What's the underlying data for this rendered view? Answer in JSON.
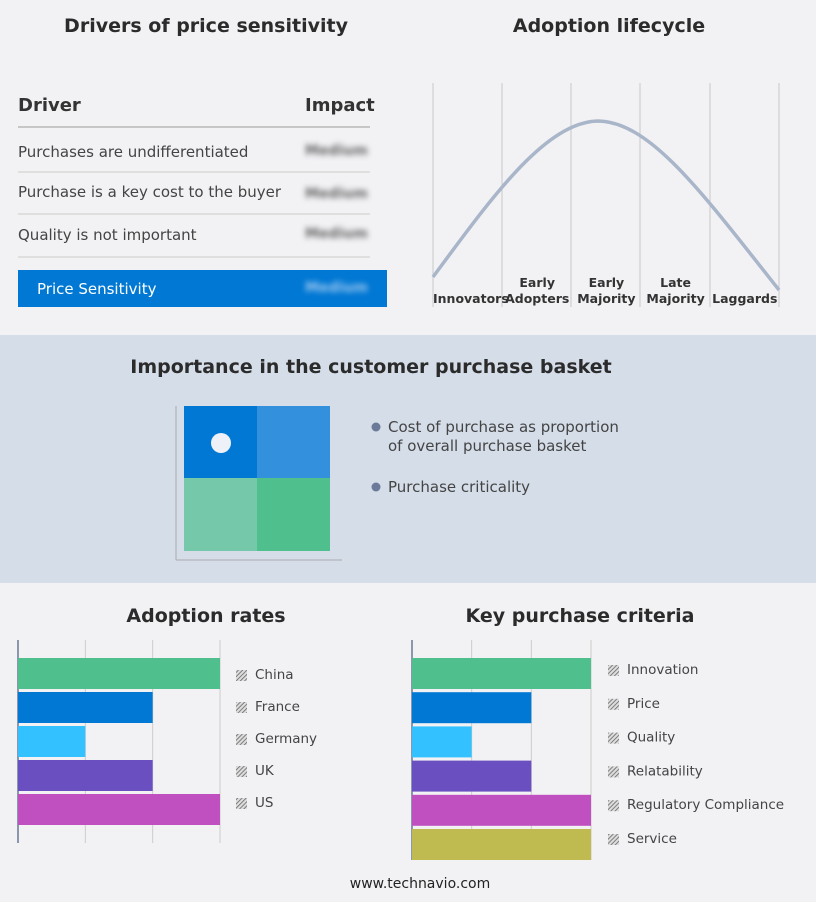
{
  "drivers": {
    "title": "Drivers of price sensitivity",
    "header": [
      "Driver",
      "Impact"
    ],
    "rows": [
      [
        "Purchases are undifferentiated",
        "Medium"
      ],
      [
        "Purchase is a key cost to the buyer",
        "Medium"
      ],
      [
        "Quality is not important",
        "Medium"
      ]
    ],
    "summary": [
      "Price Sensitivity",
      "Medium"
    ]
  },
  "lifecycle": {
    "title": "Adoption lifecycle",
    "stages": [
      "Innovators",
      "Early Adopters",
      "Early Majority",
      "Late Majority",
      "Laggards"
    ]
  },
  "basket": {
    "title": "Importance in the customer purchase basket",
    "legend": [
      "Cost of purchase as proportion of overall purchase basket",
      "Purchase criticality"
    ]
  },
  "chart_data": [
    {
      "type": "bar",
      "title": "Adoption rates",
      "categories": [
        "China",
        "France",
        "Germany",
        "UK",
        "US"
      ],
      "values": [
        3,
        2,
        1,
        2,
        3
      ],
      "colors": [
        "#4fc08d",
        "#0078d4",
        "#33c2ff",
        "#6a4fc0",
        "#c04fbf"
      ],
      "xlim": [
        0,
        3
      ],
      "xticks": [
        0,
        1,
        2,
        3
      ],
      "grid": true
    },
    {
      "type": "bar",
      "title": "Key purchase criteria",
      "categories": [
        "Innovation",
        "Price",
        "Quality",
        "Relatability",
        "Regulatory Compliance",
        "Service"
      ],
      "values": [
        3,
        2,
        1,
        2,
        3,
        3
      ],
      "colors": [
        "#4fc08d",
        "#0078d4",
        "#33c2ff",
        "#6a4fc0",
        "#c04fbf",
        "#bfbb50"
      ],
      "xlim": [
        0,
        3
      ],
      "xticks": [
        0,
        1,
        2,
        3
      ],
      "grid": true
    }
  ],
  "footer": "www.technavio.com"
}
